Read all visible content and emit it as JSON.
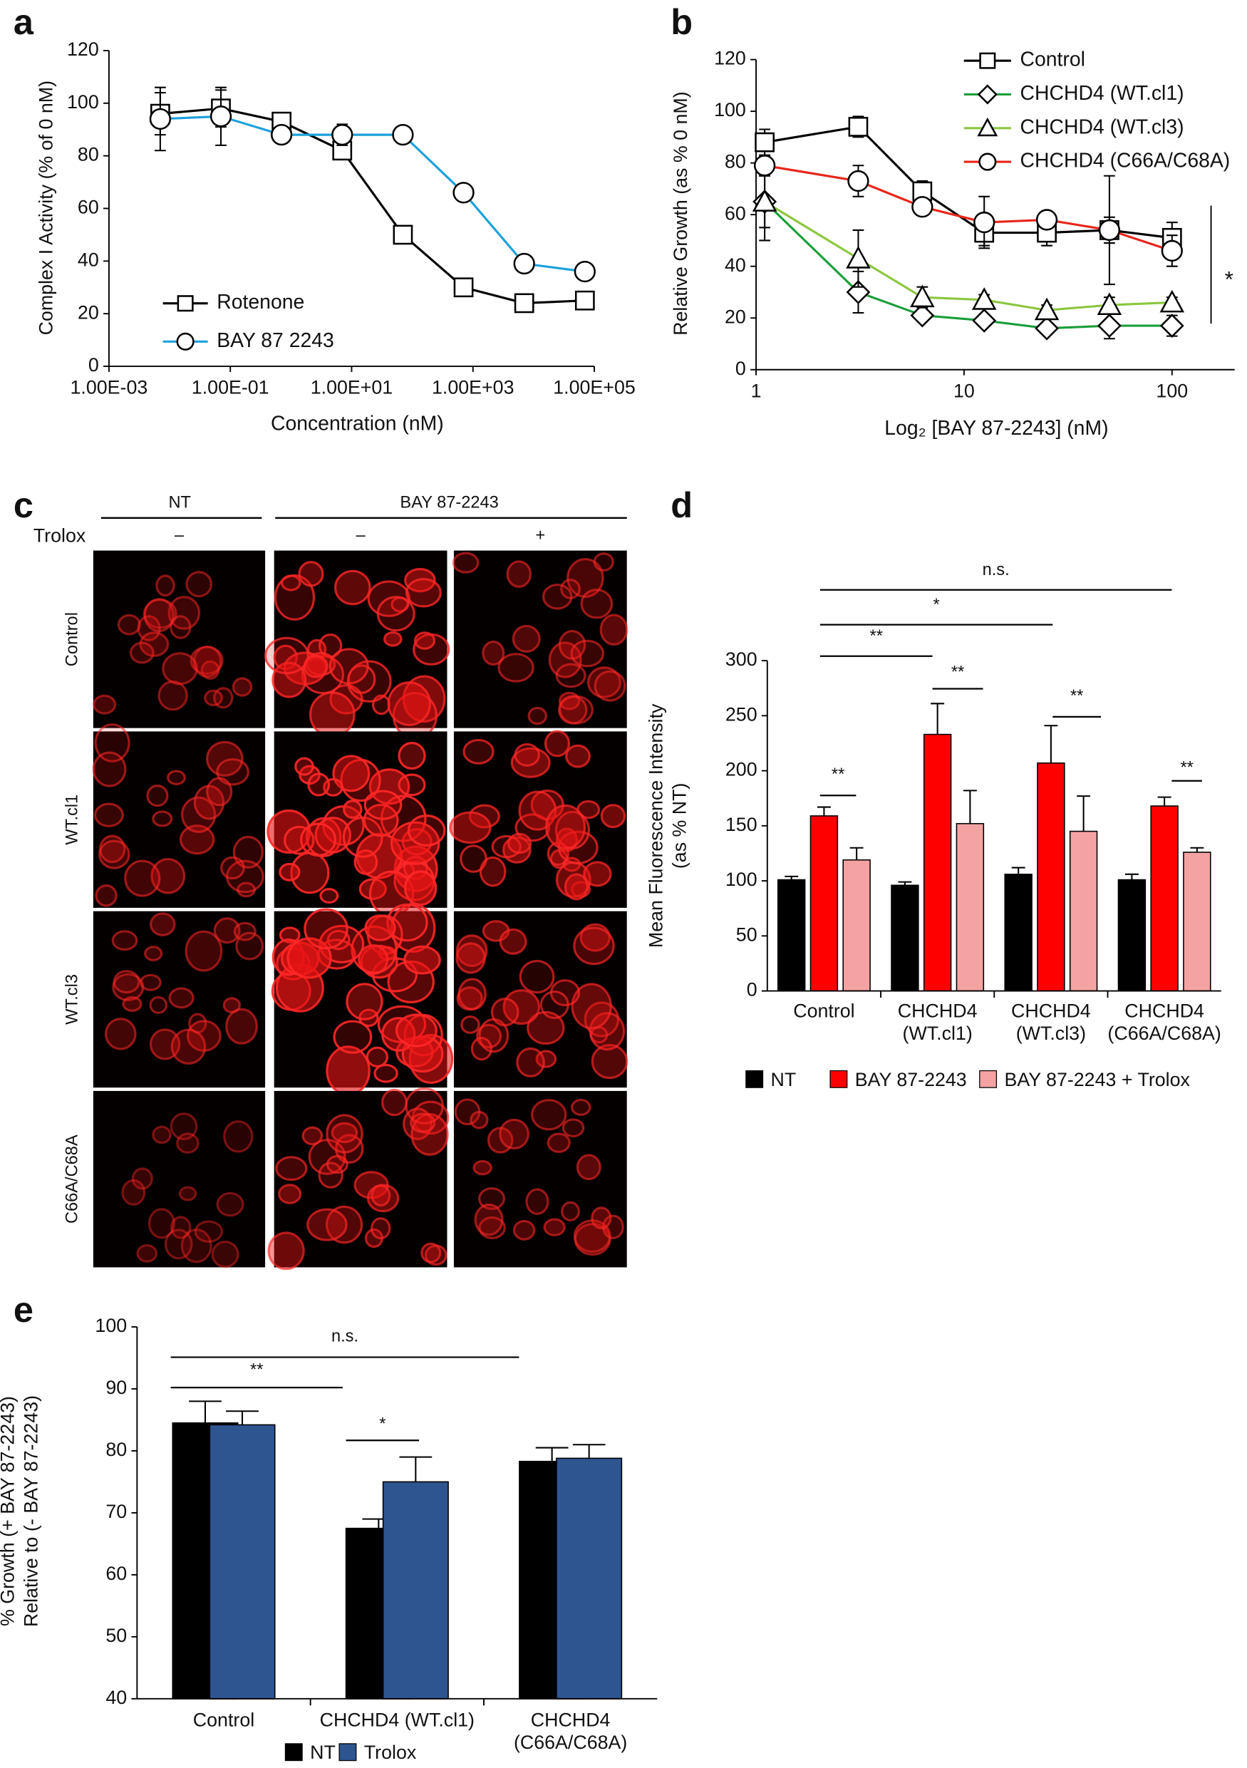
{
  "chart_data": [
    {
      "panel": "a",
      "type": "line",
      "xlabel": "Concentration (nM)",
      "ylabel": "Complex I Activity (% of 0 nM)",
      "xscale": "log",
      "x": [
        0.007,
        0.07,
        0.7,
        7,
        70,
        700,
        7000,
        70000
      ],
      "xlim": [
        0.001,
        100000
      ],
      "xticks": [
        {
          "value": 0.001,
          "label": "1.00E-03"
        },
        {
          "value": 0.1,
          "label": "1.00E-01"
        },
        {
          "value": 10,
          "label": "1.00E+01"
        },
        {
          "value": 1000,
          "label": "1.00E+03"
        },
        {
          "value": 100000,
          "label": "1.00E+05"
        }
      ],
      "ylim": [
        0,
        120
      ],
      "yticks": [
        0,
        20,
        40,
        60,
        80,
        100,
        120
      ],
      "legend": "lower left",
      "series": [
        {
          "name": "Rotenone",
          "color": "#000000",
          "marker": "square",
          "values": [
            96,
            98,
            93,
            82,
            50,
            30,
            24,
            25
          ],
          "errors": [
            8,
            7,
            2,
            3,
            2,
            2,
            2,
            2
          ]
        },
        {
          "name": "BAY 87 2243",
          "color": "#1ba1db",
          "marker": "circle",
          "values": [
            94,
            95,
            88,
            88,
            88,
            66,
            39,
            36
          ],
          "errors": [
            12,
            11,
            2,
            4,
            2,
            2,
            2,
            2
          ]
        }
      ]
    },
    {
      "panel": "b",
      "type": "line",
      "xlabel": "Log₂ [BAY 87-2243] (nM)",
      "ylabel": "Relative Growth (as % 0 nM)",
      "xscale": "log",
      "x": [
        1.1,
        3.1,
        6.3,
        12.5,
        25,
        50,
        100
      ],
      "xlim": [
        1,
        200
      ],
      "xticks": [
        1,
        10,
        100
      ],
      "ylim": [
        0,
        120
      ],
      "yticks": [
        0,
        20,
        40,
        60,
        80,
        100,
        120
      ],
      "legend": "upper right",
      "annotations": [
        "*"
      ],
      "series": [
        {
          "name": "Control",
          "color": "#000000",
          "marker": "square",
          "values": [
            88,
            94,
            69,
            53,
            53,
            54,
            51
          ],
          "errors": [
            5,
            4,
            4,
            5,
            5,
            5,
            6
          ]
        },
        {
          "name": "CHCHD4 (WT.cl1)",
          "color": "#1a9e3a",
          "marker": "diamond",
          "values": [
            65,
            30,
            21,
            19,
            16,
            17,
            17
          ],
          "errors": [
            10,
            8,
            2,
            2,
            2,
            5,
            4
          ]
        },
        {
          "name": "CHCHD4 (WT.cl3)",
          "color": "#8cc63f",
          "marker": "triangle",
          "values": [
            65,
            43,
            28,
            27,
            23,
            25,
            26
          ],
          "errors": [
            15,
            11,
            4,
            2,
            2,
            3,
            2
          ]
        },
        {
          "name": "CHCHD4 (C66A/C68A)",
          "color": "#e8251b",
          "marker": "circle",
          "values": [
            79,
            73,
            63,
            57,
            58,
            54,
            46
          ],
          "errors": [
            4,
            6,
            2,
            10,
            2,
            21,
            6
          ]
        }
      ]
    },
    {
      "panel": "d",
      "type": "bar",
      "ylabel": "Mean Fluorescence Intensity\n(as % NT)",
      "categories": [
        "Control",
        "CHCHD4\n(WT.cl1)",
        "CHCHD4\n(WT.cl3)",
        "CHCHD4\n(C66A/C68A)"
      ],
      "ylim": [
        0,
        300
      ],
      "yticks": [
        0,
        50,
        100,
        150,
        200,
        250,
        300
      ],
      "legend": "bottom",
      "annotations": [
        "n.s.",
        "*",
        "**",
        "**",
        "**",
        "**",
        "**"
      ],
      "series": [
        {
          "name": "NT",
          "color": "#000000",
          "values": [
            101,
            96,
            106,
            101
          ],
          "errors": [
            3,
            3,
            6,
            5
          ]
        },
        {
          "name": "BAY 87-2243",
          "color": "#ff0000",
          "values": [
            159,
            233,
            207,
            168
          ],
          "errors": [
            8,
            28,
            34,
            8
          ]
        },
        {
          "name": "BAY 87-2243 + Trolox",
          "color": "#f4a3a3",
          "values": [
            119,
            152,
            145,
            126
          ],
          "errors": [
            11,
            30,
            32,
            4
          ]
        }
      ]
    },
    {
      "panel": "e",
      "type": "bar",
      "ylabel": "% Growth (+ BAY 87-2243)\nRelative to (- BAY 87-2243)",
      "categories": [
        "Control",
        "CHCHD4 (WT.cl1)",
        "CHCHD4\n(C66A/C68A)"
      ],
      "ylim": [
        40,
        100
      ],
      "yticks": [
        40,
        50,
        60,
        70,
        80,
        90,
        100
      ],
      "legend": "bottom",
      "annotations": [
        "n.s.",
        "**",
        "*"
      ],
      "series": [
        {
          "name": "NT",
          "color": "#000000",
          "values": [
            84.5,
            67.5,
            78.3
          ],
          "errors": [
            3.5,
            1.5,
            2.2
          ]
        },
        {
          "name": "Trolox",
          "color": "#2e5590",
          "values": [
            84.2,
            75,
            78.8
          ],
          "errors": [
            2.2,
            4,
            2.2
          ]
        }
      ]
    }
  ],
  "panel_c": {
    "panel": "c",
    "columns": [
      "NT",
      "BAY 87-2243"
    ],
    "treatment_label": "Trolox",
    "treatment": [
      "–",
      "–",
      "+"
    ],
    "rows": [
      "Control",
      "WT.cl1",
      "WT.cl3",
      "C66A/C68A"
    ]
  }
}
